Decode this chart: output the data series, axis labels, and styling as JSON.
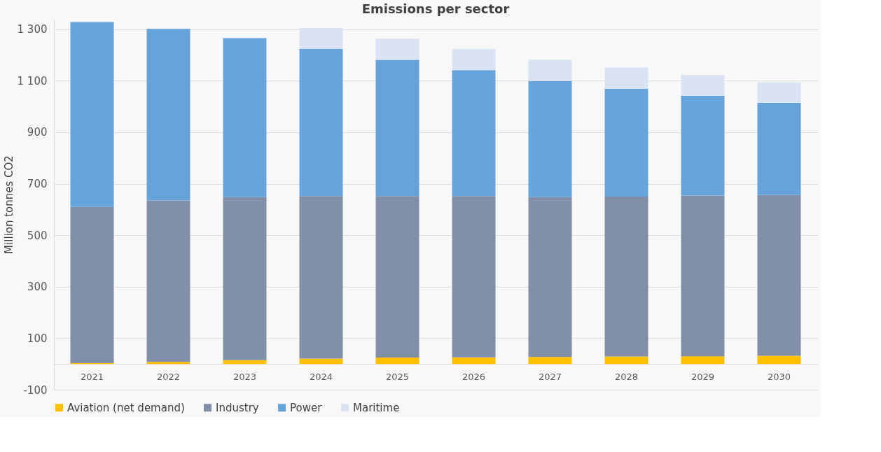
{
  "chart_data": {
    "type": "bar",
    "title": "Emissions per sector",
    "ylabel": "Million tonnes CO2",
    "stacked": true,
    "legend": "bottom",
    "grid": "y",
    "categories": [
      "2021",
      "2022",
      "2023",
      "2024",
      "2025",
      "2026",
      "2027",
      "2028",
      "2029",
      "2030"
    ],
    "ylim": [
      -100,
      1340
    ],
    "yticks": [
      {
        "value": -100,
        "label": "-100"
      },
      {
        "value": 100,
        "label": "100"
      },
      {
        "value": 300,
        "label": "300"
      },
      {
        "value": 500,
        "label": "500"
      },
      {
        "value": 700,
        "label": "700"
      },
      {
        "value": 900,
        "label": "900"
      },
      {
        "value": 1100,
        "label": "1 100"
      },
      {
        "value": 1300,
        "label": "1 300"
      }
    ],
    "series": [
      {
        "name": "Aviation (net demand)",
        "color": "#ffc000",
        "values": [
          3,
          8,
          15,
          21,
          25,
          26,
          27,
          29,
          30,
          32
        ]
      },
      {
        "name": "Industry",
        "color": "#8190a8",
        "values": [
          607,
          627,
          633,
          631,
          627,
          626,
          621,
          621,
          624,
          624
        ]
      },
      {
        "name": "Power",
        "color": "#65a3da",
        "values": [
          718,
          666,
          617,
          571,
          529,
          489,
          451,
          419,
          388,
          358
        ]
      },
      {
        "name": "Maritime",
        "color": "#dae3f3",
        "values": [
          null,
          null,
          null,
          82,
          82,
          82,
          82,
          82,
          80,
          80
        ]
      }
    ]
  }
}
